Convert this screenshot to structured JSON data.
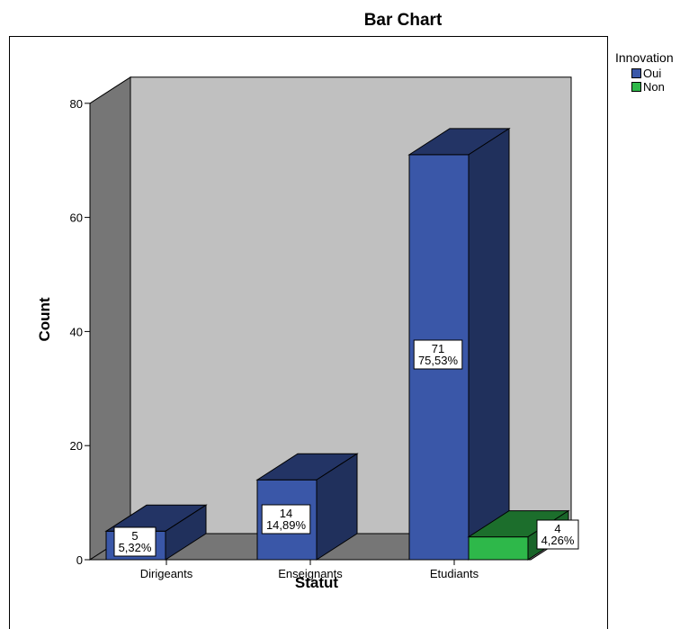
{
  "chart_data": {
    "type": "bar",
    "title": "Bar Chart",
    "xlabel": "Statut",
    "ylabel": "Count",
    "ylim": [
      0,
      80
    ],
    "yticks": [
      0,
      20,
      40,
      60,
      80
    ],
    "categories": [
      "Dirigeants",
      "Enseignants",
      "Etudiants"
    ],
    "legend_title": "Innovation",
    "legend_position": "right",
    "grid": false,
    "style": "3d",
    "series": [
      {
        "name": "Oui",
        "color": "#3a57a8",
        "values": [
          5,
          14,
          71
        ],
        "labels": [
          {
            "count": "5",
            "percent": "5,32%"
          },
          {
            "count": "14",
            "percent": "14,89%"
          },
          {
            "count": "71",
            "percent": "75,53%"
          }
        ]
      },
      {
        "name": "Non",
        "color": "#2eb84a",
        "values": [
          null,
          null,
          4
        ],
        "labels": [
          null,
          null,
          {
            "count": "4",
            "percent": "4,26%"
          }
        ]
      }
    ]
  }
}
